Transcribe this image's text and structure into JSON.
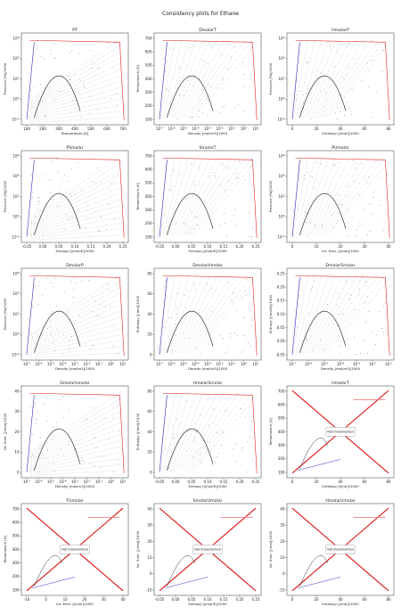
{
  "page": {
    "title": "Consistency plots for Ethane"
  },
  "legend_note": {
    "not_implemented": "Not Implemented"
  },
  "chart_data": [
    {
      "id": "PT",
      "title": "PT",
      "type": "line",
      "xlabel": "Temperature [K]",
      "ylabel": "Pressure [Pa]/1000",
      "xscale": "linear",
      "yscale": "log",
      "xticks": [
        "100",
        "200",
        "300",
        "400",
        "500",
        "600",
        "700"
      ],
      "yticks": [
        "10^-2",
        "10^0",
        "10^2",
        "10^4",
        "10^6"
      ],
      "xlim": [
        90,
        700
      ],
      "ylim": [
        0.003,
        3000000
      ],
      "implemented": true
    },
    {
      "id": "DmolarT",
      "title": "DmolarT",
      "type": "scatter",
      "xlabel": "Density [mol/m3]/1000",
      "ylabel": "Temperature [K]",
      "xscale": "log",
      "yscale": "linear",
      "xticks": [
        "10^-7",
        "10^-6",
        "10^-5",
        "10^-4",
        "10^-3",
        "10^-2",
        "10^-1",
        "10^0",
        "10^1"
      ],
      "yticks": [
        "100",
        "200",
        "300",
        "400",
        "500",
        "600",
        "700"
      ],
      "xlim": [
        1e-07,
        25
      ],
      "ylim": [
        80,
        700
      ],
      "implemented": true
    },
    {
      "id": "HmolarP",
      "title": "HmolarP",
      "type": "scatter",
      "xlabel": "Enthalpy [J/mol]/1000",
      "ylabel": "Pressure [Pa]/1000",
      "xscale": "linear",
      "yscale": "log",
      "xticks": [
        "0",
        "20",
        "40",
        "60",
        "80"
      ],
      "yticks": [
        "10^-2",
        "10^0",
        "10^2",
        "10^4",
        "10^6"
      ],
      "xlim": [
        -12,
        80
      ],
      "ylim": [
        0.003,
        3000000
      ],
      "implemented": true
    },
    {
      "id": "PSmolar",
      "title": "PSmolar",
      "type": "scatter",
      "xlabel": "Entropy [J/mol/K]/1000",
      "ylabel": "Pressure [Pa]/1000",
      "xscale": "linear",
      "yscale": "log",
      "xticks": [
        "-0.05",
        "0.00",
        "0.05",
        "0.10",
        "0.15",
        "0.20",
        "0.25"
      ],
      "yticks": [
        "10^-2",
        "10^0",
        "10^2",
        "10^4",
        "10^6"
      ],
      "xlim": [
        -0.06,
        0.27
      ],
      "ylim": [
        0.003,
        3000000
      ],
      "implemented": true
    },
    {
      "id": "SmolarT",
      "title": "SmolarT",
      "type": "scatter",
      "xlabel": "Entropy [J/mol/K]/1000",
      "ylabel": "Temperature [K]",
      "xscale": "linear",
      "yscale": "linear",
      "xticks": [
        "-0.05",
        "0.00",
        "0.05",
        "0.10",
        "0.15",
        "0.20",
        "0.25"
      ],
      "yticks": [
        "100",
        "200",
        "300",
        "400",
        "500",
        "600",
        "700"
      ],
      "xlim": [
        -0.06,
        0.27
      ],
      "ylim": [
        80,
        700
      ],
      "implemented": true
    },
    {
      "id": "PUmolar",
      "title": "PUmolar",
      "type": "scatter",
      "xlabel": "Int. Ener. [J/mol]/1000",
      "ylabel": "Pressure [Pa]/1000",
      "xscale": "linear",
      "yscale": "log",
      "xticks": [
        "0",
        "10",
        "20",
        "30",
        "40"
      ],
      "yticks": [
        "10^-2",
        "10^0",
        "10^2",
        "10^4",
        "10^6"
      ],
      "xlim": [
        -12,
        45
      ],
      "ylim": [
        0.003,
        3000000
      ],
      "implemented": true
    },
    {
      "id": "DmolarP",
      "title": "DmolarP",
      "type": "scatter",
      "xlabel": "Density [mol/m3]/1000",
      "ylabel": "Pressure [Pa]/1000",
      "xscale": "log",
      "yscale": "log",
      "xticks": [
        "10^-7",
        "10^-6",
        "10^-5",
        "10^-4",
        "10^-3",
        "10^-2",
        "10^-1",
        "10^0",
        "10^1"
      ],
      "yticks": [
        "10^-2",
        "10^0",
        "10^2",
        "10^4",
        "10^6"
      ],
      "xlim": [
        1e-07,
        25
      ],
      "ylim": [
        0.003,
        3000000
      ],
      "implemented": true
    },
    {
      "id": "DmolarHmolar",
      "title": "DmolarHmolar",
      "type": "scatter",
      "xlabel": "Density [mol/m3]/1000",
      "ylabel": "Enthalpy [J/mol]/1000",
      "xscale": "log",
      "yscale": "linear",
      "xticks": [
        "10^-7",
        "10^-6",
        "10^-5",
        "10^-4",
        "10^-3",
        "10^-2",
        "10^-1",
        "10^0",
        "10^1"
      ],
      "yticks": [
        "0",
        "20",
        "40",
        "60",
        "80"
      ],
      "xlim": [
        1e-07,
        25
      ],
      "ylim": [
        -12,
        80
      ],
      "implemented": true
    },
    {
      "id": "DmolarSmolar",
      "title": "DmolarSmolar",
      "type": "scatter",
      "xlabel": "Density [mol/m3]/1000",
      "ylabel": "Entropy [J/mol/K]/1000",
      "xscale": "log",
      "yscale": "linear",
      "xticks": [
        "10^-7",
        "10^-6",
        "10^-5",
        "10^-4",
        "10^-3",
        "10^-2",
        "10^-1"
      ],
      "yticks": [
        "-0.05",
        "0.00",
        "0.05",
        "0.10",
        "0.15",
        "0.20",
        "0.25"
      ],
      "xlim": [
        1e-07,
        25
      ],
      "ylim": [
        -0.06,
        0.27
      ],
      "implemented": true
    },
    {
      "id": "DmolarUmolar",
      "title": "DmolarUmolar",
      "type": "scatter",
      "xlabel": "Density [mol/m3]/1000",
      "ylabel": "Int. Ener. [J/mol]/1000",
      "xscale": "log",
      "yscale": "linear",
      "xticks": [
        "10^-7",
        "10^-6",
        "10^-5",
        "10^-4",
        "10^-3",
        "10^-2",
        "10^-1",
        "10^0",
        "10^1"
      ],
      "yticks": [
        "0",
        "10",
        "20",
        "30",
        "40"
      ],
      "xlim": [
        1e-07,
        25
      ],
      "ylim": [
        -12,
        45
      ],
      "implemented": true
    },
    {
      "id": "HmolarSmolar",
      "title": "HmolarSmolar",
      "type": "scatter",
      "xlabel": "Entropy [J/mol/K]/1000",
      "ylabel": "Enthalpy [J/mol]/1000",
      "xscale": "linear",
      "yscale": "linear",
      "xticks": [
        "-0.05",
        "0.00",
        "0.05",
        "0.10",
        "0.15",
        "0.20",
        "0.25"
      ],
      "yticks": [
        "0",
        "20",
        "40",
        "60",
        "80"
      ],
      "xlim": [
        -0.06,
        0.27
      ],
      "ylim": [
        -12,
        80
      ],
      "implemented": true
    },
    {
      "id": "HmolarT",
      "title": "HmolarT",
      "type": "line",
      "xlabel": "Enthalpy [J/mol]/1000",
      "ylabel": "Temperature [K]",
      "xscale": "linear",
      "yscale": "linear",
      "xticks": [
        "0",
        "20",
        "40",
        "60",
        "80"
      ],
      "yticks": [
        "100",
        "200",
        "300",
        "400",
        "500",
        "600",
        "700"
      ],
      "xlim": [
        -12,
        80
      ],
      "ylim": [
        80,
        700
      ],
      "implemented": false
    },
    {
      "id": "TUmolar",
      "title": "TUmolar",
      "type": "line",
      "xlabel": "Int. Ener. [J/mol]/1000",
      "ylabel": "Temperature [K]",
      "xscale": "linear",
      "yscale": "linear",
      "xticks": [
        "-10",
        "0",
        "10",
        "20",
        "30",
        "40"
      ],
      "yticks": [
        "100",
        "200",
        "300",
        "400",
        "500",
        "600",
        "700"
      ],
      "xlim": [
        -12,
        45
      ],
      "ylim": [
        80,
        700
      ],
      "implemented": false
    },
    {
      "id": "SmolarUmolar",
      "title": "SmolarUmolar",
      "type": "line",
      "xlabel": "Entropy [J/mol/K]/1000",
      "ylabel": "Int. Ener. [J/mol]/1000",
      "xscale": "linear",
      "yscale": "linear",
      "xticks": [
        "-0.05",
        "0.00",
        "0.05",
        "0.10",
        "0.15",
        "0.20",
        "0.25"
      ],
      "yticks": [
        "-10",
        "0",
        "10",
        "20",
        "30",
        "40"
      ],
      "xlim": [
        -0.06,
        0.27
      ],
      "ylim": [
        -12,
        45
      ],
      "implemented": false
    },
    {
      "id": "HmolarUmolar",
      "title": "HmolarUmolar",
      "type": "line",
      "xlabel": "Enthalpy [J/mol]/1000",
      "ylabel": "Int. Ener. [J/mol]/1000",
      "xscale": "linear",
      "yscale": "linear",
      "xticks": [
        "0",
        "20",
        "40",
        "60",
        "80"
      ],
      "yticks": [
        "-10",
        "0",
        "10",
        "20",
        "30",
        "40"
      ],
      "xlim": [
        -12,
        80
      ],
      "ylim": [
        -12,
        45
      ],
      "implemented": false
    }
  ]
}
